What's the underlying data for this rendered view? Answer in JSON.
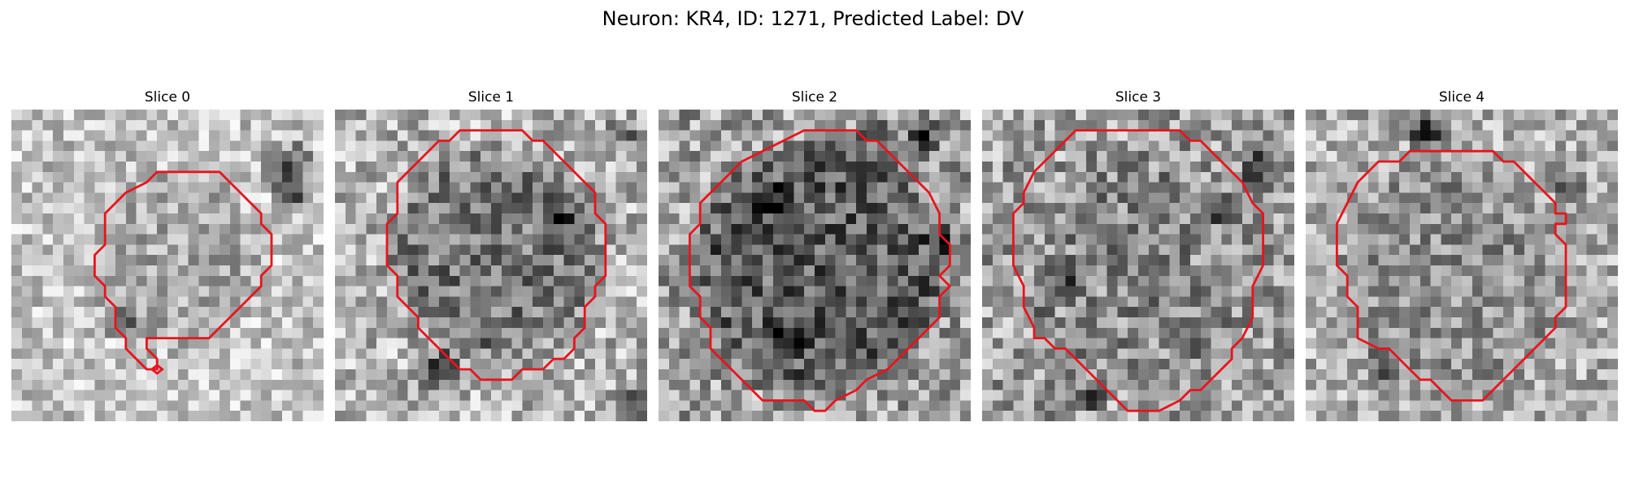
{
  "figure": {
    "title": "Neuron: KR4, ID: 1271, Predicted Label: DV"
  },
  "panels": [
    {
      "title": "Slice 0"
    },
    {
      "title": "Slice 1"
    },
    {
      "title": "Slice 2"
    },
    {
      "title": "Slice 3"
    },
    {
      "title": "Slice 4"
    }
  ],
  "colors": {
    "contour": "#e8141c",
    "background": "#ffffff"
  }
}
